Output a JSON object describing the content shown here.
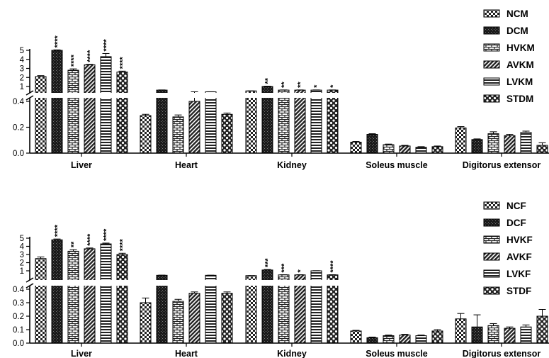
{
  "chart_data": [
    {
      "type": "bar",
      "title": "",
      "xlabel": "",
      "ylabel": "",
      "categories": [
        "Liver",
        "Heart",
        "Kidney",
        "Soleus muscle",
        "Digitorus extensor"
      ],
      "axis_break": {
        "lower_range": [
          0,
          0.4
        ],
        "upper_range": [
          1,
          5
        ]
      },
      "lower_ticks": [
        "0.0",
        "0.2",
        "0.4"
      ],
      "upper_ticks": [
        "1",
        "2",
        "3",
        "4",
        "5"
      ],
      "legend_position": "top-right",
      "grid": false,
      "series": [
        {
          "name": "NCM",
          "values": [
            2.1,
            0.29,
            0.51,
            0.085,
            0.195
          ],
          "errors": [
            0.1,
            0.01,
            0.005,
            0.005,
            0.01
          ],
          "stars": [
            "",
            "",
            "",
            "",
            ""
          ],
          "pattern": "checker"
        },
        {
          "name": "DCM",
          "values": [
            5.0,
            0.6,
            1.0,
            0.145,
            0.105
          ],
          "errors": [
            0.05,
            0.02,
            0.04,
            0.005,
            0.005
          ],
          "stars": [
            "****",
            "",
            "**",
            "",
            ""
          ],
          "pattern": "dark"
        },
        {
          "name": "HVKM",
          "values": [
            2.8,
            0.28,
            0.6,
            0.065,
            0.15
          ],
          "errors": [
            0.15,
            0.015,
            0.02,
            0.005,
            0.015
          ],
          "stars": [
            "****",
            "",
            "**",
            "",
            ""
          ],
          "pattern": "brick"
        },
        {
          "name": "AVKM",
          "values": [
            3.4,
            0.4,
            0.6,
            0.055,
            0.135
          ],
          "errors": [
            0.05,
            0.015,
            0.02,
            0.005,
            0.01
          ],
          "stars": [
            "****",
            "",
            "**",
            "",
            ""
          ],
          "pattern": "diagonal"
        },
        {
          "name": "LVKM",
          "values": [
            4.3,
            0.41,
            0.6,
            0.045,
            0.16
          ],
          "errors": [
            0.35,
            0.01,
            0.02,
            0.005,
            0.01
          ],
          "stars": [
            "****",
            "",
            "*",
            "",
            ""
          ],
          "pattern": "hlines"
        },
        {
          "name": "STDM",
          "values": [
            2.6,
            0.3,
            0.6,
            0.05,
            0.06
          ],
          "errors": [
            0.1,
            0.01,
            0.02,
            0.005,
            0.02
          ],
          "stars": [
            "****",
            "",
            "*",
            "",
            ""
          ],
          "pattern": "dots"
        }
      ]
    },
    {
      "type": "bar",
      "title": "",
      "xlabel": "",
      "ylabel": "",
      "categories": [
        "Liver",
        "Heart",
        "Kidney",
        "Soleus muscle",
        "Digitorus extensor"
      ],
      "axis_break": {
        "lower_range": [
          0,
          0.4
        ],
        "upper_range": [
          1,
          5
        ]
      },
      "lower_ticks": [
        "0.0",
        "0.1",
        "0.2",
        "0.3",
        "0.4"
      ],
      "upper_ticks": [
        "1",
        "2",
        "3",
        "4",
        "5"
      ],
      "legend_position": "top-right",
      "grid": false,
      "series": [
        {
          "name": "NCF",
          "values": [
            2.5,
            0.3,
            0.41,
            0.09,
            0.18
          ],
          "errors": [
            0.2,
            0.035,
            0.005,
            0.005,
            0.04
          ],
          "stars": [
            "",
            "",
            "",
            "",
            ""
          ],
          "pattern": "checker"
        },
        {
          "name": "DCF",
          "values": [
            4.8,
            0.45,
            1.1,
            0.04,
            0.12
          ],
          "errors": [
            0.1,
            0.02,
            0.06,
            0.005,
            0.09
          ],
          "stars": [
            "****",
            "",
            "***",
            "",
            ""
          ],
          "pattern": "dark"
        },
        {
          "name": "HVKF",
          "values": [
            3.4,
            0.31,
            0.5,
            0.055,
            0.13
          ],
          "errors": [
            0.2,
            0.015,
            0.02,
            0.005,
            0.015
          ],
          "stars": [
            "**",
            "",
            "***",
            "",
            ""
          ],
          "pattern": "brick"
        },
        {
          "name": "AVKF",
          "values": [
            3.7,
            0.37,
            0.5,
            0.06,
            0.11
          ],
          "errors": [
            0.1,
            0.01,
            0.02,
            0.005,
            0.01
          ],
          "stars": [
            "****",
            "",
            "*",
            "",
            ""
          ],
          "pattern": "diagonal"
        },
        {
          "name": "LVKF",
          "values": [
            4.3,
            0.45,
            1.0,
            0.055,
            0.12
          ],
          "errors": [
            0.1,
            0.01,
            0.02,
            0.005,
            0.015
          ],
          "stars": [
            "****",
            "",
            "",
            "",
            ""
          ],
          "pattern": "hlines"
        },
        {
          "name": "STDF",
          "values": [
            3.0,
            0.37,
            0.5,
            0.09,
            0.2
          ],
          "errors": [
            0.15,
            0.01,
            0.02,
            0.01,
            0.05
          ],
          "stars": [
            "****",
            "",
            "****",
            "",
            ""
          ],
          "pattern": "dots"
        }
      ]
    }
  ]
}
